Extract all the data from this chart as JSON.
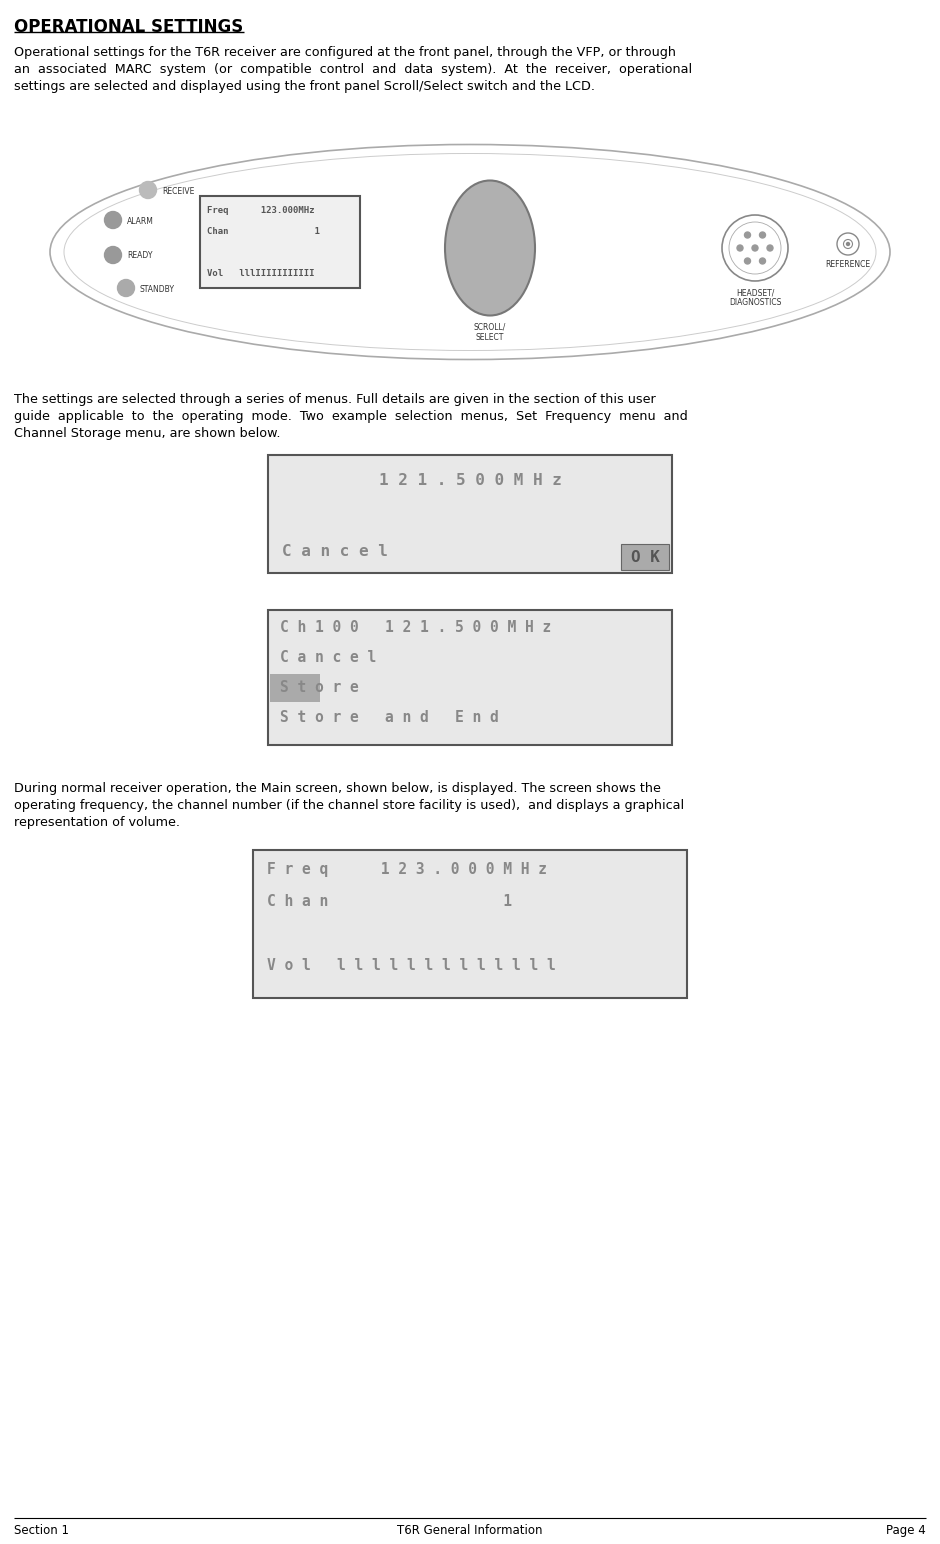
{
  "title": "OPERATIONAL SETTINGS",
  "para1_lines": [
    "Operational settings for the T6R receiver are configured at the front panel, through the VFP, or through",
    "an  associated  MARC  system  (or  compatible  control  and  data  system).  At  the  receiver,  operational",
    "settings are selected and displayed using the front panel Scroll/Select switch and the LCD."
  ],
  "para2_lines": [
    "The settings are selected through a series of menus. Full details are given in the section of this user",
    "guide  applicable  to  the  operating  mode.  Two  example  selection  menus,  Set  Frequency  menu  and",
    "Channel Storage menu, are shown below."
  ],
  "para3_lines": [
    "During normal receiver operation, the Main screen, shown below, is displayed. The screen shows the",
    "operating frequency, the channel number (if the channel store facility is used),  and displays a graphical",
    "representation of volume."
  ],
  "lcd1_lines": [
    "Freq      123.000MHz",
    "Chan                1",
    "",
    "Vol   lllIIIIIIIIIII"
  ],
  "freq_menu_line1": "1 2 1 . 5 0 0 M H z",
  "freq_menu_cancel": "C a n c e l",
  "freq_menu_ok": "O K",
  "chan_menu_lines": [
    "C h 1 0 0   1 2 1 . 5 0 0 M H z",
    "C a n c e l",
    "S t o r e",
    "S t o r e   a n d   E n d"
  ],
  "main_screen_lines": [
    "F r e q      1 2 3 . 0 0 0 M H z",
    "C h a n                    1",
    "",
    "V o l   l l l l l l l l l l l l l"
  ],
  "footer_section": "Section 1",
  "footer_title": "T6R General Information",
  "footer_page": "Page 4",
  "bg_color": "#ffffff",
  "text_color": "#000000",
  "lcd_bg": "#e8e8e8",
  "lcd_text_color": "#888888",
  "lcd_border_color": "#555555",
  "panel_edge_color": "#aaaaaa",
  "led_colors": [
    "#bbbbbb",
    "#999999",
    "#999999",
    "#aaaaaa"
  ],
  "led_labels": [
    "RECEIVE",
    "ALARM",
    "READY",
    "STANDBY"
  ]
}
